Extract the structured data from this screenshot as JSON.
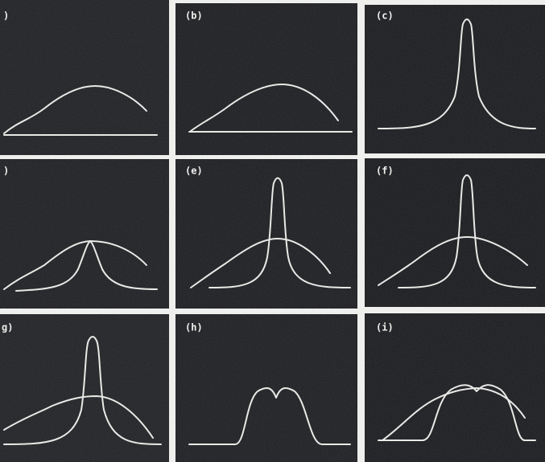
{
  "panels": [
    {
      "label": ")"
    },
    {
      "label": "(b)"
    },
    {
      "label": "(c)"
    },
    {
      "label": ")"
    },
    {
      "label": "(e)"
    },
    {
      "label": "(f)"
    },
    {
      "label": "g)"
    },
    {
      "label": "(h)"
    },
    {
      "label": "(i)"
    }
  ]
}
